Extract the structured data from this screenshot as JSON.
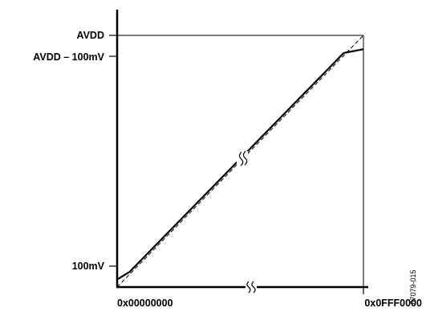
{
  "chart_data": {
    "type": "line",
    "title": "",
    "xlabel": "",
    "ylabel": "",
    "x_ticks": [
      "0x00000000",
      "0x0FFF0000"
    ],
    "y_ticks": [
      "100mV",
      "AVDD – 100mV",
      "AVDD"
    ],
    "xlim": [
      0,
      1
    ],
    "ylim": [
      0,
      1
    ],
    "series": [
      {
        "style": "solid",
        "x": [
          0,
          0.05,
          0.92,
          1
        ],
        "y": [
          0.03,
          0.06,
          0.93,
          0.945
        ]
      },
      {
        "style": "dashed",
        "x": [
          0,
          1
        ],
        "y": [
          0,
          1
        ]
      }
    ],
    "grid": false,
    "axis_breaks": [
      "x",
      "diagonal"
    ],
    "figure_id": "07079-015"
  }
}
